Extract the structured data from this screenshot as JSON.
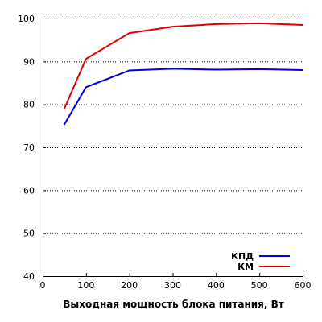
{
  "chart_data": {
    "type": "line",
    "title": "",
    "xlabel": "Выходная мощность блока питания, Вт",
    "ylabel": "",
    "xlim": [
      0,
      600
    ],
    "ylim": [
      40,
      100
    ],
    "xticks": [
      0,
      100,
      200,
      300,
      400,
      500,
      600
    ],
    "yticks": [
      40,
      50,
      60,
      70,
      80,
      90,
      100
    ],
    "grid": true,
    "legend_position": "bottom-right",
    "series": [
      {
        "name": "КПД",
        "color": "#0000dd",
        "x": [
          50,
          100,
          200,
          300,
          400,
          500,
          600
        ],
        "y": [
          75.3,
          84.0,
          87.9,
          88.3,
          88.1,
          88.2,
          88.0
        ]
      },
      {
        "name": "КМ",
        "color": "#dd0000",
        "x": [
          50,
          100,
          200,
          300,
          400,
          500,
          600
        ],
        "y": [
          79.0,
          90.6,
          96.6,
          98.1,
          98.7,
          98.9,
          98.5
        ]
      }
    ]
  }
}
